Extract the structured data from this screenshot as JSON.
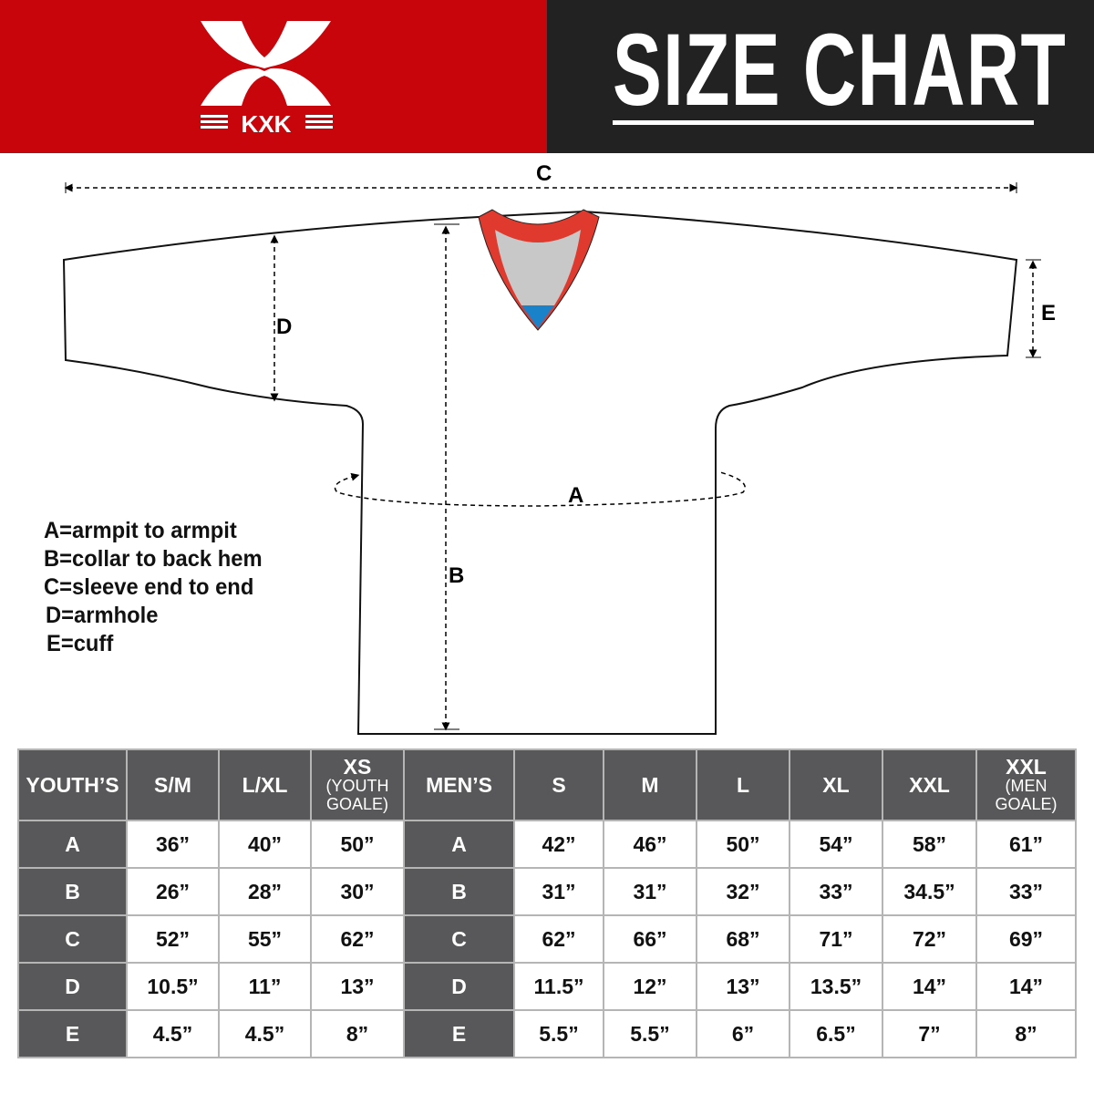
{
  "brand": {
    "logo_text": "KXK",
    "color_primary": "#c8050b",
    "color_dark": "#222222"
  },
  "title": "SIZE CHART",
  "diagram": {
    "labels": {
      "a": "A",
      "b": "B",
      "c": "C",
      "d": "D",
      "e": "E"
    },
    "collar_colors": {
      "trim": "#e03a2e",
      "inner": "#c8c8c8",
      "tag": "#1a82c8"
    }
  },
  "legend": [
    "A=armpit to armpit",
    "B=collar to back hem",
    "C=sleeve end to end",
    "D=armhole",
    "E=cuff"
  ],
  "table": {
    "youth_header": "YOUTH’S",
    "men_header": "MEN’S",
    "youth_sizes": [
      {
        "main": "S/M",
        "sub": ""
      },
      {
        "main": "L/XL",
        "sub": ""
      },
      {
        "main": "XS",
        "sub": "(YOUTH GOALE)"
      }
    ],
    "men_sizes": [
      {
        "main": "S",
        "sub": ""
      },
      {
        "main": "M",
        "sub": ""
      },
      {
        "main": "L",
        "sub": ""
      },
      {
        "main": "XL",
        "sub": ""
      },
      {
        "main": "XXL",
        "sub": ""
      },
      {
        "main": "XXL",
        "sub": "(MEN GOALE)"
      }
    ],
    "rows": [
      {
        "label": "A",
        "youth": [
          "36”",
          "40”",
          "50”"
        ],
        "men": [
          "42”",
          "46”",
          "50”",
          "54”",
          "58”",
          "61”"
        ]
      },
      {
        "label": "B",
        "youth": [
          "26”",
          "28”",
          "30”"
        ],
        "men": [
          "31”",
          "31”",
          "32”",
          "33”",
          "34.5”",
          "33”"
        ]
      },
      {
        "label": "C",
        "youth": [
          "52”",
          "55”",
          "62”"
        ],
        "men": [
          "62”",
          "66”",
          "68”",
          "71”",
          "72”",
          "69”"
        ]
      },
      {
        "label": "D",
        "youth": [
          "10.5”",
          "11”",
          "13”"
        ],
        "men": [
          "11.5”",
          "12”",
          "13”",
          "13.5”",
          "14”",
          "14”"
        ]
      },
      {
        "label": "E",
        "youth": [
          "4.5”",
          "4.5”",
          "8”"
        ],
        "men": [
          "5.5”",
          "5.5”",
          "6”",
          "6.5”",
          "7”",
          "8”"
        ]
      }
    ]
  }
}
